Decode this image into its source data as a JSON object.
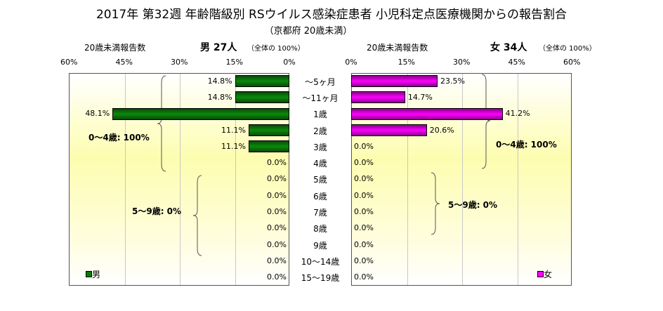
{
  "chart_data": {
    "type": "bar",
    "title": "2017年 第32週 年齢階級別 RSウイルス感染症患者 小児科定点医療機関からの報告割合",
    "subtitle": "（京都府 20歳未満）",
    "categories": [
      "～5ヶ月",
      "～11ヶ月",
      "1歳",
      "2歳",
      "3歳",
      "4歳",
      "5歳",
      "6歳",
      "7歳",
      "8歳",
      "9歳",
      "10～14歳",
      "15～19歳"
    ],
    "xlim": [
      0,
      60
    ],
    "ticks": [
      "60%",
      "45%",
      "30%",
      "15%",
      "0%"
    ],
    "ticks_right": [
      "0%",
      "15%",
      "30%",
      "45%",
      "60%"
    ],
    "series": [
      {
        "name": "男",
        "color": "#008000",
        "header_prefix": "20歳未満報告数",
        "header_main": "男  27人",
        "header_suffix": "（全体の  100%）",
        "values": [
          14.8,
          14.8,
          48.1,
          11.1,
          11.1,
          0,
          0,
          0,
          0,
          0,
          0,
          0,
          0
        ],
        "labels": [
          "14.8%",
          "14.8%",
          "48.1%",
          "11.1%",
          "11.1%",
          "0.0%",
          "0.0%",
          "0.0%",
          "0.0%",
          "0.0%",
          "0.0%",
          "0.0%",
          "0.0%"
        ],
        "annotations": [
          "0～4歳: 100%",
          "5～9歳: 0%"
        ]
      },
      {
        "name": "女",
        "color": "#ff00ff",
        "header_prefix": "20歳未満報告数",
        "header_main": "女  34人",
        "header_suffix": "（全体の  100%）",
        "values": [
          23.5,
          14.7,
          41.2,
          20.6,
          0,
          0,
          0,
          0,
          0,
          0,
          0,
          0,
          0
        ],
        "labels": [
          "23.5%",
          "14.7%",
          "41.2%",
          "20.6%",
          "0.0%",
          "0.0%",
          "0.0%",
          "0.0%",
          "0.0%",
          "0.0%",
          "0.0%",
          "0.0%",
          "0.0%"
        ],
        "annotations": [
          "0～4歳: 100%",
          "5～9歳: 0%"
        ]
      }
    ]
  }
}
